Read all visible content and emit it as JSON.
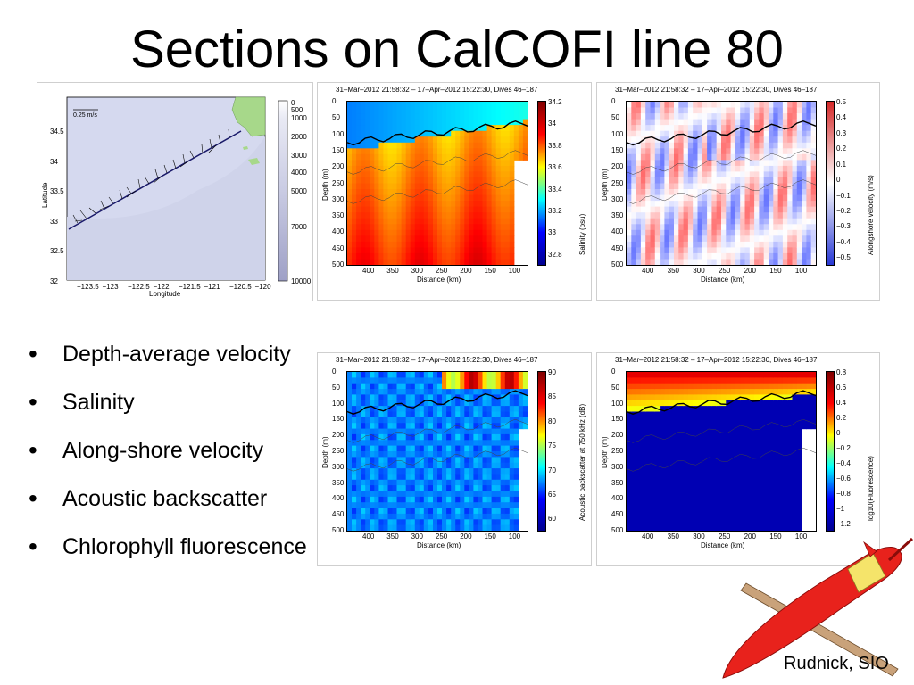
{
  "slide": {
    "title": "Sections on CalCOFI line 80",
    "credit": "Rudnick, SIO"
  },
  "bullets": [
    "Depth-average velocity",
    "Salinity",
    "Along-shore velocity",
    "Acoustic backscatter",
    "Chlorophyll fluorescence"
  ],
  "map_panel": {
    "scale_label": "0.25 m/s",
    "xlabel": "Longitude",
    "ylabel": "Latitude",
    "xticks": [
      "−123.5",
      "−123",
      "−122.5",
      "−122",
      "−121.5",
      "−121",
      "−120.5",
      "−120"
    ],
    "yticks": [
      "34.5",
      "34",
      "33.5",
      "33",
      "32.5",
      "32"
    ],
    "depth_ticks": [
      "0",
      "500",
      "1000",
      "2000",
      "3000",
      "4000",
      "5000",
      "7000",
      "10000"
    ]
  },
  "sections": {
    "common_title": "31–Mar–2012 21:58:32 – 17–Apr–2012 15:22:30, Dives 46–187",
    "xlabel": "Distance (km)",
    "ylabel": "Depth (m)",
    "xticks": [
      "400",
      "350",
      "300",
      "250",
      "200",
      "150",
      "100"
    ],
    "yticks": [
      "0",
      "50",
      "100",
      "150",
      "200",
      "250",
      "300",
      "350",
      "400",
      "450",
      "500"
    ],
    "salinity": {
      "cbar_label": "Salinity (psu)",
      "cbar_ticks": [
        "34.2",
        "34",
        "33.8",
        "33.6",
        "33.4",
        "33.2",
        "33",
        "32.8"
      ]
    },
    "alongshore": {
      "cbar_label": "Alongshore velocity (m/s)",
      "cbar_ticks": [
        "0.5",
        "0.4",
        "0.3",
        "0.2",
        "0.1",
        "0",
        "−0.1",
        "−0.2",
        "−0.3",
        "−0.4",
        "−0.5"
      ]
    },
    "backscatter": {
      "cbar_label": "Acoustic backscatter at 750 kHz (dB)",
      "cbar_ticks": [
        "90",
        "85",
        "80",
        "75",
        "70",
        "65",
        "60"
      ]
    },
    "fluorescence": {
      "cbar_label": "log10(Fluorescence)",
      "cbar_ticks": [
        "0.8",
        "0.6",
        "0.4",
        "0.2",
        "0",
        "−0.2",
        "−0.4",
        "−0.6",
        "−0.8",
        "−1",
        "−1.2"
      ]
    }
  },
  "colors": {
    "jet_top": "#8b0000",
    "jet_bottom": "#00008f",
    "land": "#a7d88a",
    "ocean": "#d5d9ef",
    "glider_body": "#e8221c"
  }
}
